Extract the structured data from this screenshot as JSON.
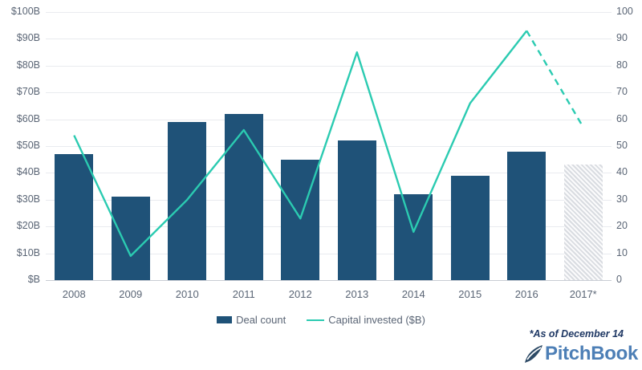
{
  "chart_data": {
    "type": "combo_bar_line",
    "title": "",
    "categories": [
      "2008",
      "2009",
      "2010",
      "2011",
      "2012",
      "2013",
      "2014",
      "2015",
      "2016",
      "2017*"
    ],
    "series": [
      {
        "name": "Deal count",
        "type": "bar",
        "axis": "right",
        "values": [
          47,
          31,
          59,
          62,
          45,
          52,
          32,
          39,
          48,
          43
        ],
        "forecast_last_bar": true
      },
      {
        "name": "Capital invested ($B)",
        "type": "line",
        "axis": "left",
        "values": [
          54,
          9,
          30,
          56,
          23,
          85,
          18,
          66,
          93,
          57
        ],
        "dashed_from_index": 8
      }
    ],
    "left_axis": {
      "min": 0,
      "max": 100,
      "ticks": [
        "$B",
        "$10B",
        "$20B",
        "$30B",
        "$40B",
        "$50B",
        "$60B",
        "$70B",
        "$80B",
        "$90B",
        "$100B"
      ]
    },
    "right_axis": {
      "min": 0,
      "max": 100,
      "ticks": [
        "0",
        "10",
        "20",
        "30",
        "40",
        "50",
        "60",
        "70",
        "80",
        "90",
        "100"
      ]
    },
    "grid": true,
    "legend_position": "bottom"
  },
  "legend": {
    "items": [
      {
        "label": "Deal count",
        "swatch": "bar"
      },
      {
        "label": "Capital invested ($B)",
        "swatch": "line"
      }
    ]
  },
  "footer": {
    "footnote": "*As of December 14",
    "brand": "PitchBook",
    "brand_icon": "pitchbook-leaf-icon"
  },
  "colors": {
    "bar": "#1f5278",
    "line": "#2bcbb1",
    "forecast_hatch": "#d9dce1",
    "grid": "#e9ebef",
    "axis_label": "#5a6575",
    "footnote": "#1f3864",
    "brand": "#4d7fb6",
    "brand_mark": "#2d4a66"
  }
}
